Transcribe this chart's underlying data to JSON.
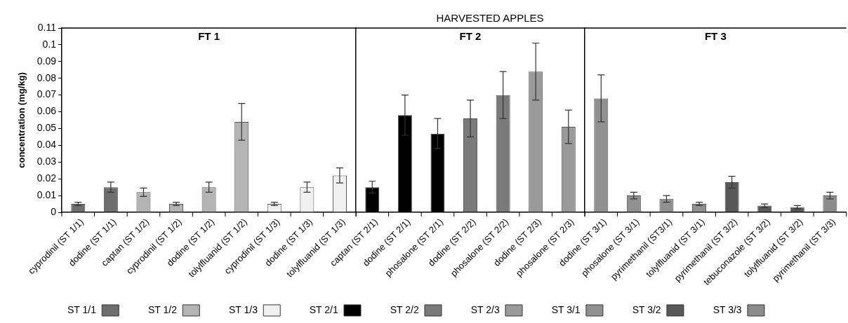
{
  "chart_data": [
    {
      "type": "bar",
      "title": "FT 1",
      "ylabel": "concentration (mg/kg)",
      "categories": [
        "cyprodinil (ST 1/1)",
        "dodine (ST 1/1)",
        "captan (ST 1/2)",
        "cyprodinil (ST 1/2)",
        "dodine (ST 1/2)",
        "tolylfluanid (ST 1/2)",
        "cyprodinil (ST 1/3)",
        "dodine (ST 1/3)",
        "tolylfluanid (ST 1/3)"
      ],
      "series": [
        {
          "name": "ST 1/1",
          "color": "#6e6e6e",
          "values": [
            0.005,
            0.015,
            null,
            null,
            null,
            null,
            null,
            null,
            null
          ],
          "errors": [
            0.001,
            0.003,
            null,
            null,
            null,
            null,
            null,
            null,
            null
          ]
        },
        {
          "name": "ST 1/2",
          "color": "#b4b4b4",
          "values": [
            null,
            null,
            0.012,
            0.005,
            0.015,
            0.054,
            null,
            null,
            null
          ],
          "errors": [
            null,
            null,
            0.0025,
            0.001,
            0.003,
            0.011,
            null,
            null,
            null
          ]
        },
        {
          "name": "ST 1/3",
          "color": "#f0f0f0",
          "values": [
            null,
            null,
            null,
            null,
            null,
            null,
            0.005,
            0.015,
            0.022
          ],
          "errors": [
            null,
            null,
            null,
            null,
            null,
            null,
            0.001,
            0.003,
            0.0045
          ]
        }
      ],
      "ylim": [
        0,
        0.11
      ],
      "yticks": [
        0,
        0.01,
        0.02,
        0.03,
        0.04,
        0.05,
        0.06,
        0.07,
        0.08,
        0.09,
        0.1,
        0.11
      ],
      "grid": false,
      "legend": "bottom"
    },
    {
      "type": "bar",
      "title": "FT 2",
      "annotations": [
        "HARVESTED APPLES"
      ],
      "categories": [
        "captan (ST 2/1)",
        "dodine (ST 2/1)",
        "phosalone (ST 2/1)",
        "dodine (ST 2/2)",
        "phosalone (ST 2/2)",
        "dodine (ST 2/3)",
        "phosalone (ST 2/3)"
      ],
      "series": [
        {
          "name": "ST 2/1",
          "color": "#000000",
          "values": [
            0.015,
            0.058,
            0.047,
            null,
            null,
            null,
            null
          ],
          "errors": [
            0.0035,
            0.012,
            0.009,
            null,
            null,
            null,
            null
          ]
        },
        {
          "name": "ST 2/2",
          "color": "#7a7a7a",
          "values": [
            null,
            null,
            null,
            0.056,
            0.07,
            null,
            null
          ],
          "errors": [
            null,
            null,
            null,
            0.011,
            0.014,
            null,
            null
          ]
        },
        {
          "name": "ST 2/3",
          "color": "#9a9a9a",
          "values": [
            null,
            null,
            null,
            null,
            null,
            0.084,
            0.051
          ],
          "errors": [
            null,
            null,
            null,
            null,
            null,
            0.017,
            0.01
          ]
        }
      ],
      "ylim": [
        0,
        0.11
      ],
      "yticks": [
        0,
        0.01,
        0.02,
        0.03,
        0.04,
        0.05,
        0.06,
        0.07,
        0.08,
        0.09,
        0.1,
        0.11
      ],
      "tick_labels": "x",
      "grid": false,
      "legend": "bottom"
    },
    {
      "type": "bar",
      "title": "FT 3",
      "categories": [
        "dodine (ST 3/1)",
        "phosalone (ST 3/1)",
        "pyrimethanil (ST3/1)",
        "tolylfluanid (ST 3/1)",
        "pyrimethanil (ST 3/2)",
        "tebuconazole (ST 3/2)",
        "tolylfluanid (ST 3/2)",
        "pyrimethanil (ST 3/3)"
      ],
      "series": [
        {
          "name": "ST 3/1",
          "color": "#909090",
          "values": [
            0.068,
            0.01,
            0.008,
            0.005,
            null,
            null,
            null,
            null
          ],
          "errors": [
            0.014,
            0.002,
            0.002,
            0.001,
            null,
            null,
            null,
            null
          ]
        },
        {
          "name": "ST 3/2",
          "color": "#585858",
          "values": [
            null,
            null,
            null,
            null,
            0.018,
            0.004,
            0.003,
            null
          ],
          "errors": [
            null,
            null,
            null,
            null,
            0.0035,
            0.001,
            0.001,
            null
          ]
        },
        {
          "name": "ST 3/3",
          "color": "#8c8c8c",
          "values": [
            null,
            null,
            null,
            null,
            null,
            null,
            null,
            0.01
          ],
          "errors": [
            null,
            null,
            null,
            null,
            null,
            null,
            null,
            0.002
          ]
        }
      ],
      "ylim": [
        0,
        0.11
      ],
      "yticks": [
        0,
        0.01,
        0.02,
        0.03,
        0.04,
        0.05,
        0.06,
        0.07,
        0.08,
        0.09,
        0.1,
        0.11
      ],
      "tick_labels": "x",
      "grid": false,
      "legend": "bottom"
    }
  ]
}
